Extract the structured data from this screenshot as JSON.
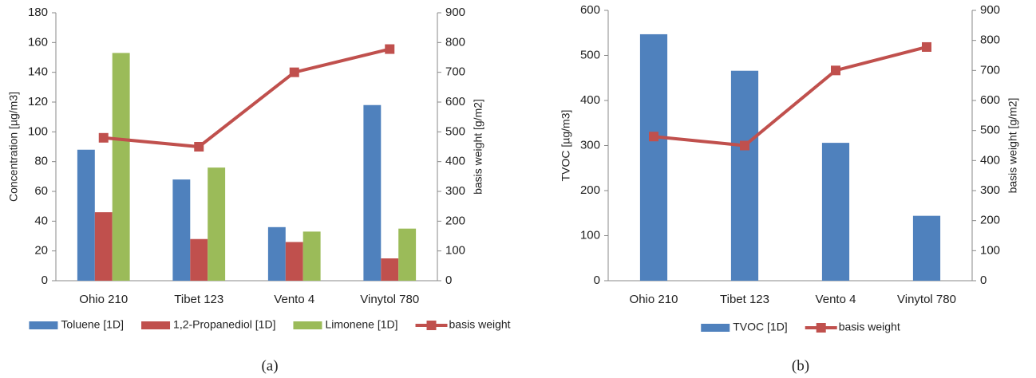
{
  "chart_data": [
    {
      "type": "bar",
      "caption": "(a)",
      "categories": [
        "Ohio 210",
        "Tibet 123",
        "Vento 4",
        "Vinytol 780"
      ],
      "y_label": "Concentration [µg/m3]",
      "y2_label": "basis weight [g/m2]",
      "ylim": [
        0,
        180
      ],
      "yticks": [
        0,
        20,
        40,
        60,
        80,
        100,
        120,
        140,
        160,
        180
      ],
      "y2lim": [
        0,
        900
      ],
      "y2ticks": [
        0,
        100,
        200,
        300,
        400,
        500,
        600,
        700,
        800,
        900
      ],
      "grid": false,
      "series": [
        {
          "name": "Toluene [1D]",
          "color": "#4f81bd",
          "values": [
            88,
            68,
            36,
            118
          ]
        },
        {
          "name": "1,2-Propanediol [1D]",
          "color": "#c0504d",
          "values": [
            46,
            28,
            26,
            15
          ]
        },
        {
          "name": "Limonene [1D]",
          "color": "#9bbb59",
          "values": [
            153,
            76,
            33,
            35
          ]
        },
        {
          "name": "basis weight",
          "color": "#c0504d",
          "type": "line",
          "axis": "y2",
          "values": [
            480,
            450,
            700,
            778
          ]
        }
      ]
    },
    {
      "type": "bar",
      "caption": "(b)",
      "categories": [
        "Ohio 210",
        "Tibet 123",
        "Vento 4",
        "Vinytol 780"
      ],
      "y_label": "TVOC [µg/m3]",
      "y2_label": "basis weight [g/m2]",
      "ylim": [
        0,
        600
      ],
      "yticks": [
        0,
        100,
        200,
        300,
        400,
        500,
        600
      ],
      "y2lim": [
        0,
        900
      ],
      "y2ticks": [
        0,
        100,
        200,
        300,
        400,
        500,
        600,
        700,
        800,
        900
      ],
      "grid": false,
      "series": [
        {
          "name": "TVOC [1D]",
          "color": "#4f81bd",
          "values": [
            547,
            466,
            306,
            144
          ]
        },
        {
          "name": "basis weight",
          "color": "#c0504d",
          "type": "line",
          "axis": "y2",
          "values": [
            480,
            450,
            700,
            778
          ]
        }
      ]
    }
  ]
}
